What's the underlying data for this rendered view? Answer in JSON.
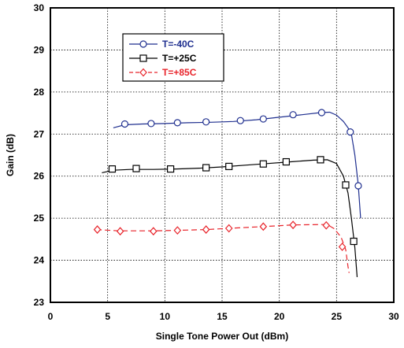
{
  "chart_data": {
    "type": "line",
    "xlabel": "Single Tone Power Out (dBm)",
    "ylabel": "Gain (dB)",
    "xlim": [
      0,
      30
    ],
    "ylim": [
      23,
      30
    ],
    "xticks": [
      "0",
      "5",
      "10",
      "15",
      "20",
      "25",
      "30"
    ],
    "yticks": [
      "23",
      "24",
      "25",
      "26",
      "27",
      "28",
      "29",
      "30"
    ],
    "grid": "dotted",
    "legend_position": "top-left",
    "series": [
      {
        "name": "T=-40C",
        "color": "#1f2f8f",
        "dash": "solid",
        "marker": "circle",
        "line": [
          [
            5.5,
            27.15
          ],
          [
            6.5,
            27.22
          ],
          [
            8,
            27.24
          ],
          [
            10,
            27.25
          ],
          [
            12,
            27.27
          ],
          [
            14,
            27.28
          ],
          [
            16,
            27.3
          ],
          [
            18,
            27.34
          ],
          [
            20,
            27.4
          ],
          [
            22,
            27.46
          ],
          [
            23.6,
            27.51
          ],
          [
            24.4,
            27.52
          ],
          [
            25,
            27.45
          ],
          [
            25.6,
            27.3
          ],
          [
            26,
            27.15
          ],
          [
            26.3,
            27.0
          ],
          [
            26.6,
            26.5
          ],
          [
            26.9,
            25.8
          ],
          [
            27.1,
            25.0
          ]
        ],
        "markers": [
          [
            6.5,
            27.24
          ],
          [
            8.8,
            27.25
          ],
          [
            11.1,
            27.27
          ],
          [
            13.6,
            27.29
          ],
          [
            16.6,
            27.32
          ],
          [
            18.6,
            27.36
          ],
          [
            21.2,
            27.46
          ],
          [
            23.7,
            27.51
          ],
          [
            26.2,
            27.05
          ],
          [
            26.9,
            25.77
          ]
        ]
      },
      {
        "name": "T=+25C",
        "color": "#000000",
        "dash": "solid",
        "marker": "square",
        "line": [
          [
            4.5,
            26.08
          ],
          [
            5.5,
            26.14
          ],
          [
            7,
            26.16
          ],
          [
            9,
            26.16
          ],
          [
            11,
            26.17
          ],
          [
            13,
            26.19
          ],
          [
            15,
            26.22
          ],
          [
            17,
            26.26
          ],
          [
            19,
            26.3
          ],
          [
            21,
            26.34
          ],
          [
            23,
            26.38
          ],
          [
            24.2,
            26.39
          ],
          [
            25,
            26.3
          ],
          [
            25.6,
            26.0
          ],
          [
            26.0,
            25.6
          ],
          [
            26.3,
            25.0
          ],
          [
            26.6,
            24.3
          ],
          [
            26.8,
            23.6
          ]
        ],
        "markers": [
          [
            5.4,
            26.17
          ],
          [
            7.5,
            26.18
          ],
          [
            10.5,
            26.17
          ],
          [
            13.6,
            26.2
          ],
          [
            15.6,
            26.23
          ],
          [
            18.6,
            26.29
          ],
          [
            20.6,
            26.34
          ],
          [
            23.6,
            26.39
          ],
          [
            25.8,
            25.79
          ],
          [
            26.5,
            24.45
          ]
        ]
      },
      {
        "name": "T=+85C",
        "color": "#e8242b",
        "dash": "dashed",
        "marker": "diamond",
        "line": [
          [
            4,
            24.73
          ],
          [
            6,
            24.7
          ],
          [
            9,
            24.7
          ],
          [
            11,
            24.71
          ],
          [
            13.6,
            24.73
          ],
          [
            15.6,
            24.76
          ],
          [
            18.6,
            24.8
          ],
          [
            21.2,
            24.84
          ],
          [
            23.6,
            24.85
          ],
          [
            24.2,
            24.85
          ],
          [
            24.8,
            24.75
          ],
          [
            25.4,
            24.55
          ],
          [
            25.8,
            24.25
          ],
          [
            26.0,
            23.85
          ],
          [
            26.1,
            23.7
          ]
        ],
        "markers": [
          [
            4.1,
            24.73
          ],
          [
            6.1,
            24.69
          ],
          [
            9,
            24.69
          ],
          [
            11.1,
            24.71
          ],
          [
            13.6,
            24.73
          ],
          [
            15.6,
            24.76
          ],
          [
            18.6,
            24.8
          ],
          [
            21.2,
            24.84
          ],
          [
            24.1,
            24.83
          ],
          [
            25.5,
            24.32
          ]
        ]
      }
    ]
  }
}
